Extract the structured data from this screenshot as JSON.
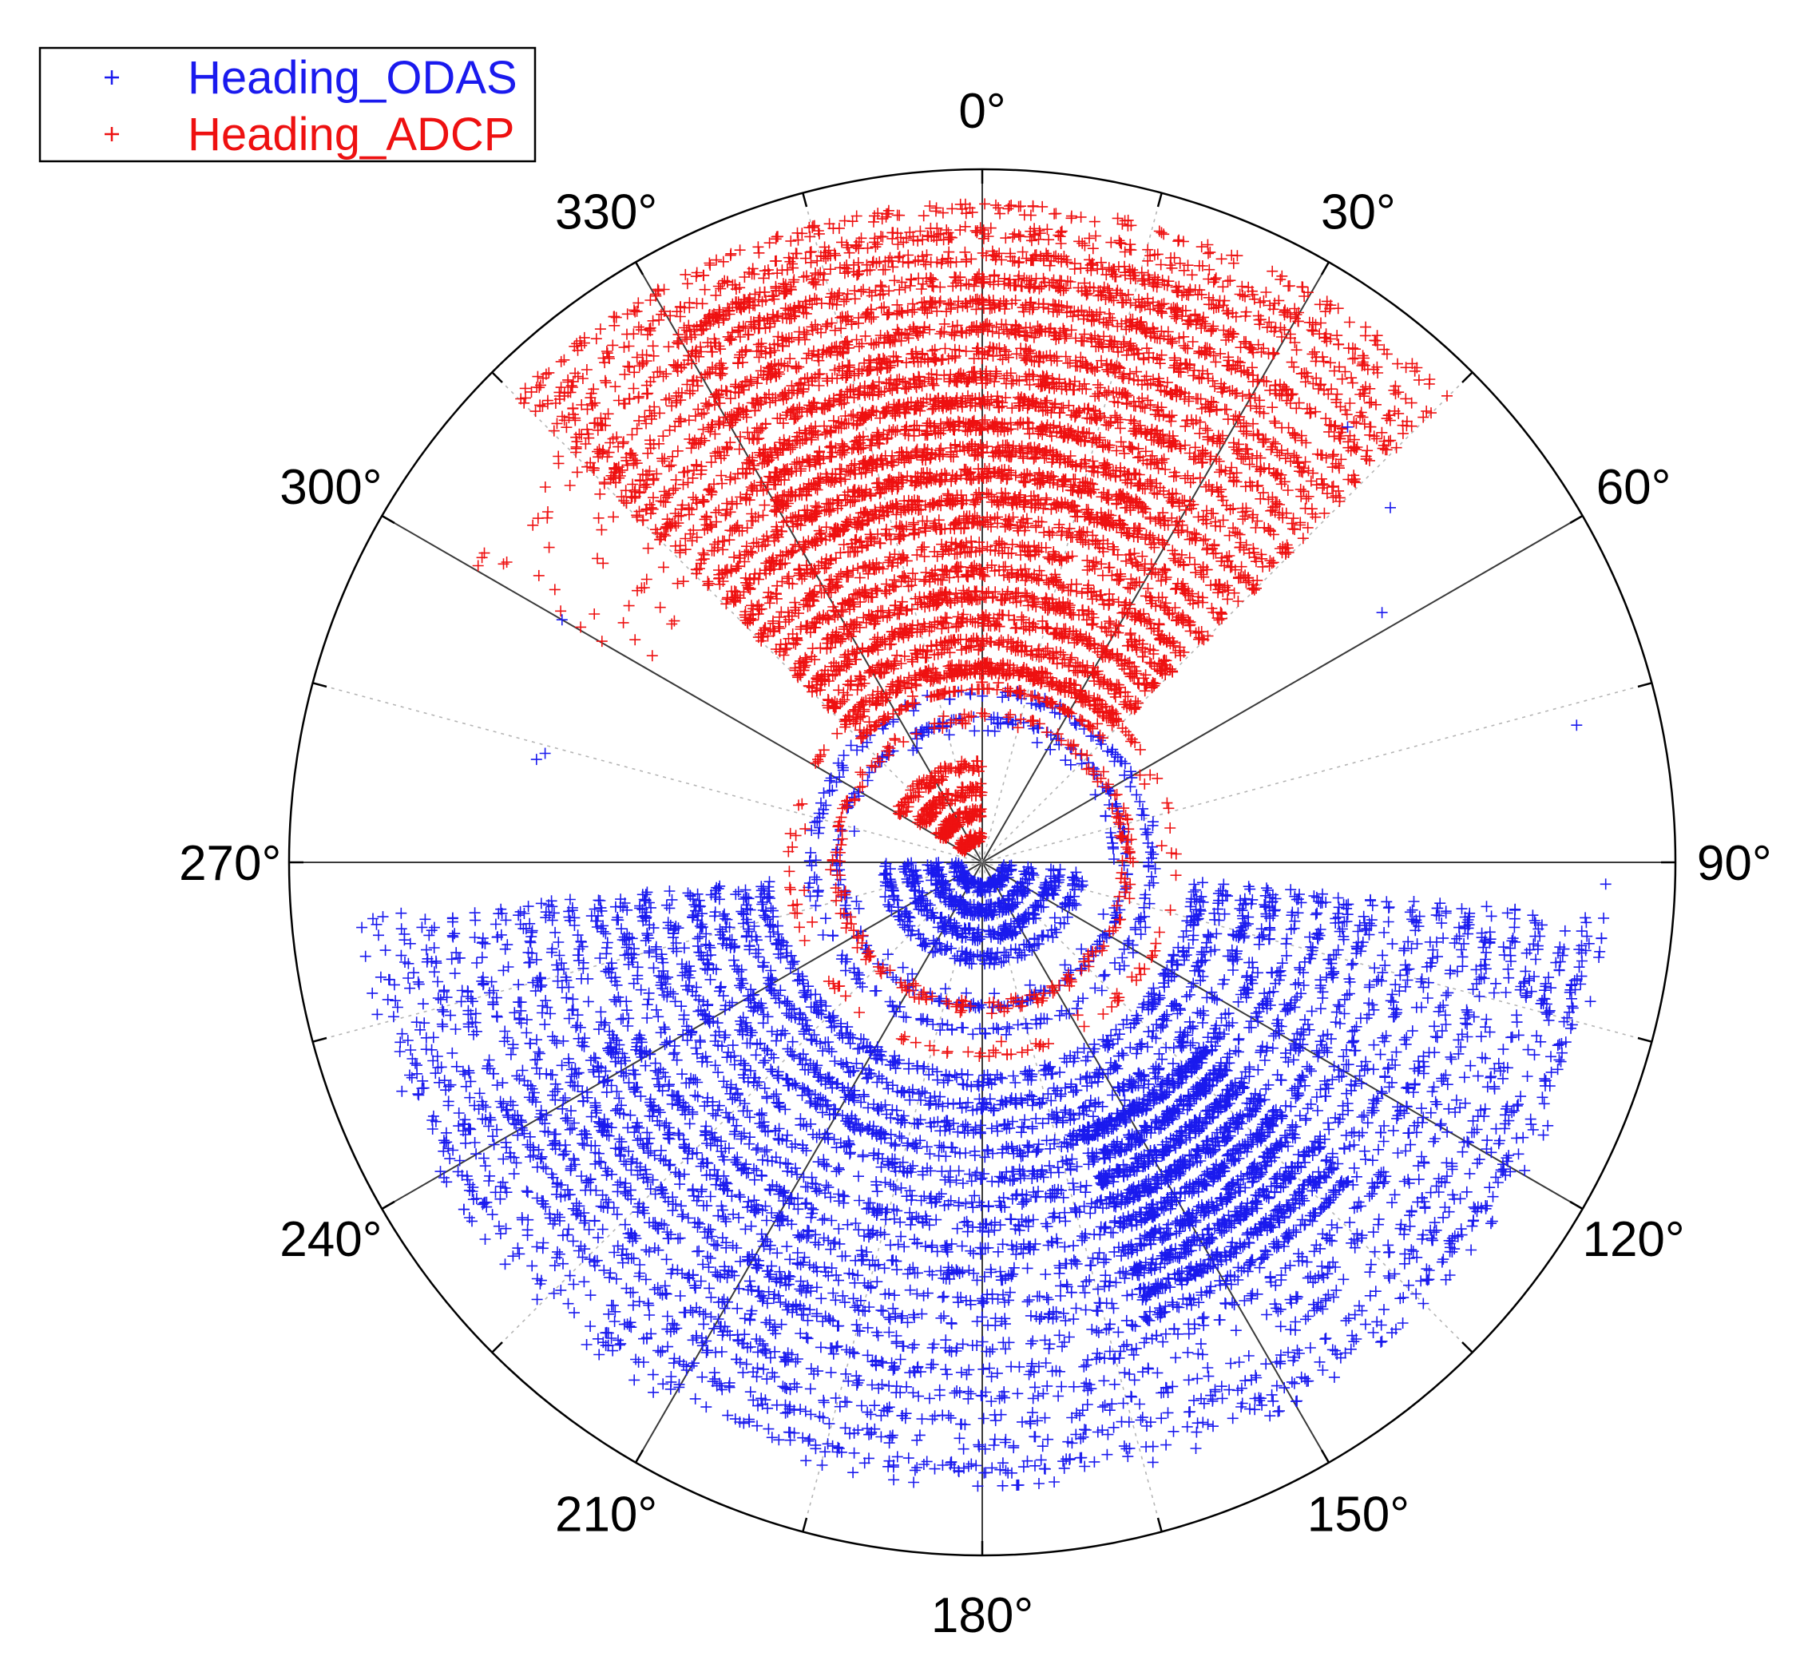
{
  "chart_data": {
    "type": "scatter",
    "subtype": "polar",
    "angle_direction": "clockwise",
    "zero_at": "top",
    "angle_labels": [
      "0°",
      "30°",
      "60°",
      "90°",
      "120°",
      "150°",
      "180°",
      "210°",
      "240°",
      "270°",
      "300°",
      "330°"
    ],
    "angle_values": [
      0,
      30,
      60,
      90,
      120,
      150,
      180,
      210,
      240,
      270,
      300,
      330
    ],
    "radial_range": [
      0,
      1
    ],
    "radial_tick_labels": "none",
    "grid": true,
    "legend": {
      "position": "top-left",
      "entries": [
        "Heading_ODAS",
        "Heading_ADCP"
      ]
    },
    "marker": "+",
    "series": [
      {
        "name": "Heading_ODAS",
        "color": "#1a1aee",
        "description_angle_range": [
          90,
          270
        ],
        "clusters": [
          {
            "theta": [
              95,
              270
            ],
            "r": [
              0.03,
              0.15
            ],
            "n": 700
          },
          {
            "theta": [
              0,
              360
            ],
            "r": [
              0.19,
              0.21
            ],
            "n": 260
          },
          {
            "theta": [
              0,
              360
            ],
            "r": [
              0.24,
              0.26
            ],
            "n": 220
          },
          {
            "theta": [
              95,
              265
            ],
            "r": [
              0.3,
              0.9
            ],
            "n": 5200
          },
          {
            "theta": [
              130,
              160
            ],
            "r": [
              0.4,
              0.7
            ],
            "n": 1200
          },
          {
            "theta": [
              200,
              245
            ],
            "r": [
              0.55,
              0.8
            ],
            "n": 300
          }
        ]
      },
      {
        "name": "Heading_ADCP",
        "color": "#ee1111",
        "description_angle_range": [
          270,
          90
        ],
        "clusters": [
          {
            "theta": [
              300,
              360
            ],
            "r": [
              0.03,
              0.15
            ],
            "n": 350
          },
          {
            "theta": [
              0,
              360
            ],
            "r": [
              0.2,
              0.22
            ],
            "n": 220
          },
          {
            "theta": [
              0,
              360
            ],
            "r": [
              0.26,
              0.28
            ],
            "n": 140
          },
          {
            "theta": [
              315,
              405
            ],
            "r": [
              0.25,
              0.95
            ],
            "n": 5200
          },
          {
            "theta": [
              330,
              385
            ],
            "r": [
              0.5,
              0.9
            ],
            "n": 1500
          },
          {
            "theta": [
              300,
              340
            ],
            "r": [
              0.55,
              0.85
            ],
            "n": 120
          }
        ]
      }
    ],
    "isolated_points": [
      {
        "series": "Heading_ODAS",
        "theta": 300,
        "r": 0.7
      },
      {
        "series": "Heading_ODAS",
        "theta": 283,
        "r": 0.66
      },
      {
        "series": "Heading_ODAS",
        "theta": 284,
        "r": 0.65
      },
      {
        "series": "Heading_ODAS",
        "theta": 40,
        "r": 0.82
      },
      {
        "series": "Heading_ODAS",
        "theta": 49,
        "r": 0.78
      },
      {
        "series": "Heading_ODAS",
        "theta": 92,
        "r": 0.9
      },
      {
        "series": "Heading_ODAS",
        "theta": 77,
        "r": 0.88
      },
      {
        "series": "Heading_ODAS",
        "theta": 58,
        "r": 0.68
      },
      {
        "series": "Heading_ADCP",
        "theta": 306,
        "r": 0.63
      }
    ]
  },
  "colors": {
    "odas": "#1a1aee",
    "adcp": "#ee1111",
    "axis": "#000000",
    "grid_solid": "#3a3a3a",
    "grid_dotted": "#b5b5b5"
  }
}
